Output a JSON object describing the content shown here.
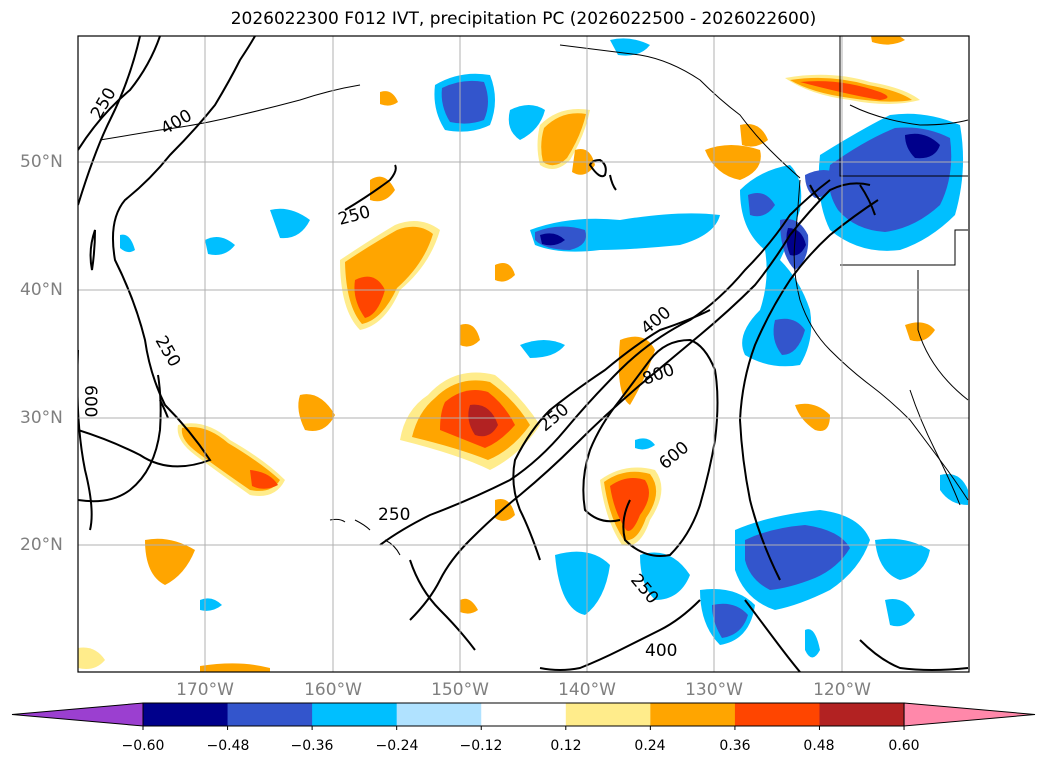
{
  "title": "2026022300 F012 IVT, precipitation PC (2026022500 - 2026022600)",
  "lat_labels": [
    "50°N",
    "40°N",
    "30°N",
    "20°N"
  ],
  "lon_labels": [
    "170°W",
    "160°W",
    "150°W",
    "140°W",
    "130°W",
    "120°W"
  ],
  "ivt_contour_labels": [
    "250",
    "400",
    "250",
    "600",
    "250",
    "400",
    "800",
    "250",
    "600",
    "250",
    "250",
    "400"
  ],
  "colorbar": {
    "ticks": [
      "−0.60",
      "−0.48",
      "−0.36",
      "−0.24",
      "−0.12",
      "0.12",
      "0.24",
      "0.36",
      "0.48",
      "0.60"
    ],
    "colors": [
      "#9b3fd0",
      "#00008b",
      "#3355cc",
      "#00bfff",
      "#b0e2ff",
      "#ffffff",
      "#ffec8b",
      "#ffa500",
      "#ff4500",
      "#b22222",
      "#ff88aa"
    ]
  }
}
